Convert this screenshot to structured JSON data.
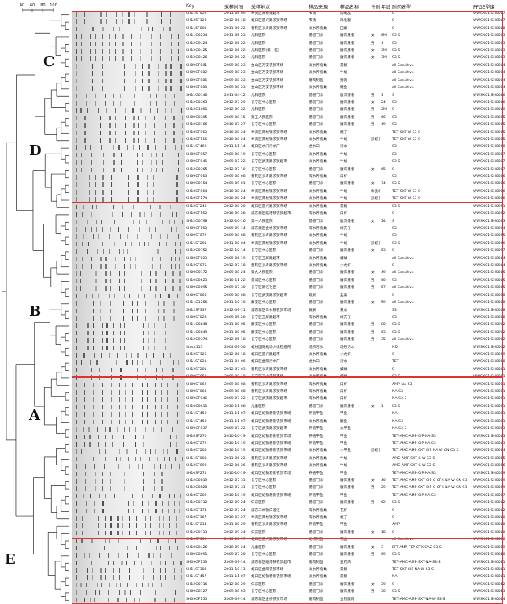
{
  "header": {
    "key": "Key",
    "date": "采样时间",
    "site": "采样地点",
    "source": "样品来源",
    "sample": "样品名称",
    "sex": "性别",
    "age": "年龄",
    "resistance": "耐药表型",
    "pfge": "PFGE型谱"
  },
  "scale_ticks": [
    "40",
    "60",
    "80",
    "100"
  ],
  "clusters": [
    "C",
    "D",
    "B",
    "A",
    "E"
  ],
  "rows": [
    [
      "SH115F029",
      "2011-05-09",
      "奉贤区南桥镇超市",
      "市场",
      "肉制品",
      "",
      "",
      "S",
      "WWSX01.SH0017"
    ],
    [
      "SH125F128",
      "2012-06-18",
      "虹口区嘉兴路农贸市场",
      "市场",
      "鸡毛翻",
      "",
      "",
      "S",
      "WWSX01.SH0017"
    ],
    [
      "SH115F003",
      "2011-06-22",
      "普陀区长寿路农贸市场",
      "淡水养殖类",
      "田螺",
      "",
      "",
      "S",
      "WWSX01.SH0018"
    ],
    [
      "SH11G0234",
      "2011-05-23",
      "儿科医院",
      "肠道门诊",
      "腹泻患者",
      "女",
      "6M",
      "S3-S",
      "WWSX01.SH0003"
    ],
    [
      "SH12G0424",
      "2012-06-22",
      "儿科医院",
      "肠道门诊",
      "腹泻患者",
      "男",
      "4",
      "S3",
      "WWSX01.SH0003"
    ],
    [
      "SH12G0425",
      "2012-06-22",
      "儿科医院(第一医)",
      "肠道门诊",
      "腹泻患者",
      "女",
      "3M",
      "S3-S",
      "WWSX01.SH0003"
    ],
    [
      "SH12G0426",
      "2012-06-22",
      "儿科医院",
      "肠道门诊",
      "腹泻患者",
      "女",
      "3M",
      "S3-S",
      "WWSX01.SH0003"
    ],
    [
      "SH09GF081",
      "2009-08-23",
      "金山区万安农贸市场",
      "淡水养殖类",
      "黄鳝",
      "",
      "",
      "all Sensitive",
      "WWSX01.SH0004"
    ],
    [
      "SH09GF082",
      "2009-08-23",
      "金山区万安农贸市场",
      "淡水养殖类",
      "牛蛙",
      "",
      "",
      "all Sensitive",
      "WWSX01.SH0004"
    ],
    [
      "SH09GF086",
      "2009-08-23",
      "金山区万安农贸市场",
      "猪肉制品",
      "猪肉",
      "",
      "",
      "all Sensitive",
      "WWSX01.SH0004"
    ],
    [
      "SH09GF088",
      "2009-08-23",
      "金山区万安农贸市场",
      "淡水养殖类",
      "鳝鱼",
      "",
      "",
      "all Sensitive",
      "WWSX01.SH0004"
    ],
    [
      "SH11G0146",
      "2011-04-12",
      "儿科医院",
      "肠道门诊",
      "腹泻患者",
      "男",
      "1",
      "S",
      "WWSX01.SH0016"
    ],
    [
      "SH12G0363",
      "2012-07-29",
      "长宁区中心医院",
      "肠道门诊",
      "腹泻患者",
      "女",
      "24",
      "S3",
      "WWSX01.SH0016"
    ],
    [
      "SH12G1001",
      "2012-09-22",
      "儿科医院",
      "肠道门诊",
      "腹泻患者",
      "男",
      "2M",
      "S",
      "WWSX01.SH0019"
    ],
    [
      "SH09G0305",
      "2009-08-15",
      "第五人民医院",
      "肠道门诊",
      "腹泻患者",
      "男",
      "66",
      "S3",
      "WWSX01.SH0005"
    ],
    [
      "SH10G0166",
      "2010-07-27",
      "长宁区中心医院",
      "肠道门诊",
      "腹泻患者",
      "男",
      "49",
      "S3",
      "WWSX01.SH0005"
    ],
    [
      "SH10GF063",
      "2010-08-24",
      "奉贤区南桥镇农贸市场",
      "淡水养殖类",
      "鳝子",
      "",
      "",
      "TET-SXT-W-S3-S",
      "WWSX01.SH0005"
    ],
    [
      "SH10GF115",
      "2010-08-24",
      "奉贤区南桥镇农贸市场",
      "淡水养殖类",
      "牛蛙",
      "彭妮子",
      "",
      "TET-SXT-W-S3-S",
      "WWSX01.SH0005"
    ],
    [
      "SH11SF462",
      "2011-11-14",
      "虹口区水门污水厂",
      "进水口",
      "污水",
      "",
      "",
      "S3",
      "WWSX01.SH0020"
    ],
    [
      "SH09GF057",
      "2009-08-19",
      "长宁区中心医院",
      "淡水养殖类",
      "牛蛙",
      "",
      "",
      "S3",
      "WWSX01.SH0007"
    ],
    [
      "SH09GF045",
      "2009-07-22",
      "长宁区武夷路农贸超市",
      "淡水养殖类",
      "牛蛙",
      "",
      "",
      "S3-S",
      "WWSX01.SH0007"
    ],
    [
      "SH12G0365",
      "2012-07-10",
      "长宁区中心医院",
      "肠道门诊",
      "腹泻患者",
      "女",
      "65",
      "S",
      "WWSX01.SH0007"
    ],
    [
      "SH09GF068",
      "2009-08-08",
      "普陀区长寿路农贸市场",
      "海水养殖类",
      "白虾",
      "",
      "",
      "S3",
      "WWSX01.SH0006"
    ],
    [
      "SH09G0154",
      "2009-09-01",
      "长宁区中心医院",
      "肠道门诊",
      "腹泻患者",
      "女",
      "74",
      "S3-S",
      "WWSX01.SH0006"
    ],
    [
      "SH10GF064",
      "2010-08-24",
      "奉贤区南桥镇农贸市场",
      "淡水养殖类",
      "牛蛙",
      "侏蚤水",
      "",
      "TET-SXT-W-S3-S",
      "WWSX01.SH0006"
    ],
    [
      "SH10GF174",
      "2010-08-24",
      "奉贤区南桥镇农贸市场",
      "淡水养殖类",
      "牛蛙",
      "彭妮子",
      "",
      "TET-SXT-W-S3-S",
      "WWSX01.SH0006"
    ],
    [
      "SH12SF248",
      "2012-08-20",
      "虹口区嘉兴路农贸市场",
      "淡水养殖类",
      "黄鳝",
      "",
      "",
      "S3-S",
      "WWSX01.SH0021"
    ],
    [
      "SH10GF152",
      "2010-09-28",
      "浦东新区临港镇农贸超市",
      "海水养殖类",
      "白虾",
      "",
      "",
      "S",
      "WWSX01.SH0022"
    ],
    [
      "SH12G0798",
      "2012-10-16",
      "第一人民医院",
      "肠道门诊",
      "腹泻患者",
      "女",
      "14",
      "S",
      "WWSX01.SH0023"
    ],
    [
      "SH09GF160",
      "2009-09-14",
      "浦东新区金桥农贸市场",
      "海水养殖类",
      "梅花子",
      "",
      "",
      "S3",
      "WWSX01.SH0024"
    ],
    [
      "SH09SF072",
      "2009-08-08",
      "普陀区长寿路农贸市场",
      "淡水养殖类",
      "牛蛙",
      "",
      "",
      "S3",
      "WWSX01.SH0025"
    ],
    [
      "SH11SF201",
      "2011-08-04",
      "奉贤区南桥镇农贸市场",
      "淡水养殖类",
      "牛蛙",
      "彭妮子",
      "",
      "S3-S",
      "WWSX01.SH0026"
    ],
    [
      "SH12G0752",
      "2012-10-14",
      "长宁区中心医院",
      "肠道门诊",
      "腹泻患者",
      "女",
      "53",
      "S",
      "WWSX01.SH0027"
    ],
    [
      "SH09GF023",
      "2009-06-19",
      "长宁区玉屏路超市",
      "淡水养殖类",
      "螺蛳",
      "",
      "",
      "all Sensitive",
      "WWSX01.SH0014"
    ],
    [
      "SH12SF075",
      "2012-07-18",
      "普陀区长寿路农贸市场",
      "淡水养殖类",
      "小龙虾",
      "",
      "",
      "S",
      "WWSX01.SH0014"
    ],
    [
      "SH09G0172",
      "2009-08-24",
      "第九人民医院",
      "肠道门诊",
      "腹泻患者",
      "女",
      "49",
      "all Sensitive",
      "WWSX01.SH0015"
    ],
    [
      "SH10G0623",
      "2010-11-22",
      "黄浦区中心医院",
      "肠道门诊",
      "腹泻患者",
      "男",
      "60",
      "S3",
      "WWSX01.SH0015"
    ],
    [
      "SH09G0095",
      "2009-07-30",
      "长宁区新泾社区",
      "肠道门诊",
      "腹泻患者",
      "男",
      "57",
      "all Sensitive",
      "WWSX01.SH0015"
    ],
    [
      "SH09SF063",
      "2009-08-08",
      "长宁区武夷路农贸超市",
      "蔬果",
      "韭菜",
      "",
      "",
      "S",
      "WWSX01.SH0028"
    ],
    [
      "SH11G1256",
      "2011-10-10",
      "静安区中心医院",
      "肠道门诊",
      "腹泻患者",
      "女",
      "59",
      "all Sensitive",
      "WWSX01.SH0008"
    ],
    [
      "SH12SF337",
      "2012-09-11",
      "浦东新区三林镇农贸市场",
      "蔬果",
      "黄瓜",
      "",
      "",
      "S3",
      "WWSX01.SH0008"
    ],
    [
      "SH09SF028",
      "2009-05-20",
      "长宁区玉屏路超市",
      "海水养殖类",
      "梅花子",
      "",
      "",
      "S3",
      "WWSX01.SH0008"
    ],
    [
      "SH11G0848",
      "2011-08-05",
      "静安区中心医院",
      "肠道门诊",
      "腹泻患者",
      "男",
      "80",
      "S3-S",
      "WWSX01.SH0002"
    ],
    [
      "SH11G0849",
      "2011-08-05",
      "静安区中心医院",
      "肠道门诊",
      "腹泻患者",
      "男",
      "63",
      "S3-S",
      "WWSX01.SH0002"
    ],
    [
      "SH12G0374",
      "2012-05-18",
      "长宁区中心医院",
      "肠道门诊",
      "腹泻患者",
      "男",
      "35",
      "all Sensitive",
      "WWSX01.SH0002"
    ],
    [
      "Stock113",
      "2004-09-30",
      "虹桥国际机场入境检疫所",
      "场所污水",
      "场所污水",
      "",
      "",
      "ND",
      "WWSX01.SH0002"
    ],
    [
      "SH12SF126",
      "2012-06-18",
      "虹口区嘉兴路超市",
      "淡水养殖类",
      "小龙虾",
      "",
      "",
      "S",
      "WWSX01.SH0029"
    ],
    [
      "SH11SF021",
      "2011-04-06",
      "虹口区曲阳污水厂",
      "进水口",
      "污水",
      "",
      "",
      "TET",
      "WWSX01.SH0030"
    ],
    [
      "SH12SF201",
      "2012-07-03",
      "普陀区长寿路农贸市场",
      "淡水养殖类",
      "螺蛳",
      "",
      "",
      "S",
      "WWSX01.SH0031"
    ],
    [
      "SH09SF053",
      "2009-08-19",
      "长宁区天山农贸市场",
      "淡水养殖类",
      "螺蛳",
      "",
      "",
      "S3-S",
      "WWSX01.SH0031"
    ],
    [
      "SH09SF062",
      "2009-08-08",
      "普陀区长寿路农贸市场",
      "海水养殖类",
      "白虾",
      "",
      "",
      "AMP-NA-S3",
      "WWSX01.SH0001"
    ],
    [
      "SH09SF063",
      "2009-08-08",
      "普陀区长寿路农贸市场",
      "海水养殖类",
      "白虾",
      "",
      "",
      "NA-S3",
      "WWSX01.SH0001"
    ],
    [
      "SH09GF046",
      "2009-07-22",
      "长宁区武夷路农贸超市",
      "海水养殖类",
      "白虾",
      "",
      "",
      "NA-S3-S",
      "WWSX01.SH0001"
    ],
    [
      "SH10G0611",
      "2010-11-08",
      "儿童医院",
      "肠道门诊",
      "腹泻患者",
      "女",
      "1",
      "S3-S",
      "WWSX01.SH0001"
    ],
    [
      "SH11SF459",
      "2011-11-07",
      "虹口区虹镇老街农贸市场",
      "养殖甲鱼",
      "甲鱼",
      "",
      "",
      "NA",
      "WWSX01.SH0001"
    ],
    [
      "SH11SF458",
      "2011-11-07",
      "虹口区虹镇老街农贸市场",
      "淡水养殖类",
      "鳜鱼",
      "",
      "",
      "NA-S3",
      "WWSX01.SH0001"
    ],
    [
      "SH09GF037",
      "2009-07-22",
      "长宁区武夷路农贸超市",
      "养殖甲鱼",
      "大甲鱼",
      "",
      "",
      "NA-S3-S",
      "WWSX01.SH0033"
    ],
    [
      "SH10SF270",
      "2010-10-19",
      "虹口区虹镇老街农贸市场",
      "养殖甲鱼",
      "甲鱼",
      "",
      "",
      "TET-AMC-AMP-CIP-NA-S3",
      "WWSX01.SH0013"
    ],
    [
      "SH10SF272",
      "2010-10-19",
      "虹口区虹镇老街农贸市场",
      "养殖甲鱼",
      "甲鱼",
      "",
      "",
      "TET-AMC-AMP-CIP-NA-S3",
      "WWSX01.SH0013"
    ],
    [
      "SH10SF208",
      "2010-10-19",
      "虹口区虹镇老街农贸市场",
      "淡水养殖类",
      "小甲鱼",
      "彭妮子",
      "",
      "TET-AMC-AMP-SXT-CIP-NA-W-CN-S3-S",
      "WWSX01.SH0034"
    ],
    [
      "SH11SF088",
      "2011-06-22",
      "普陀区长寿路农贸市场",
      "淡水养殖类",
      "牛蛙",
      "",
      "",
      "AMC-AMP-SXT-C-W-S3-S",
      "WWSX01.SH0035"
    ],
    [
      "SH12SF098",
      "2012-06-26",
      "普陀区长寿路农贸市场",
      "淡水养殖类",
      "牛蛙",
      "",
      "",
      "AMC-AMP-SXT-C-W-S3-S",
      "WWSX01.SH0036"
    ],
    [
      "SH10SF271",
      "2010-10-19",
      "虹口区虹镇老街农贸市场",
      "养殖甲鱼",
      "甲鱼",
      "",
      "",
      "TET-AMC-AMP-CIP-NA-S3",
      "WWSX01.SH0009"
    ],
    [
      "SH12G0819",
      "2012-07-31",
      "长宁区中心医院",
      "肠道门诊",
      "腹泻患者",
      "女",
      "40",
      "TET-AMC-AMP-SXT-CIP-C-CFX-NA-W-CN-S3-S",
      "WWSX01.SH0009"
    ],
    [
      "SH12G0820",
      "2012-07-31",
      "长宁区中心医院",
      "肠道门诊",
      "腹泻患者",
      "男",
      "29",
      "TET-AMC-AMP-SXT-CIP-C-CFX-NA-W-CN-S3-S",
      "WWSX01.SH0009"
    ],
    [
      "SH10SF209",
      "2010-10-19",
      "虹口区虹镇老街农贸市场",
      "养殖甲鱼",
      "甲鱼",
      "",
      "",
      "TET-AMC-AMP-CIP-NA-S3",
      "WWSX01.SH0037"
    ],
    [
      "SH12G0712",
      "2012-09-24",
      "仁济医院",
      "肠道门诊",
      "腹泻患者",
      "男",
      "62",
      "S3-S",
      "WWSX01.SH0012"
    ],
    [
      "SH12SF174",
      "2012-07-24",
      "浦东三林镇白莲泾",
      "海水养殖类",
      "花虾",
      "",
      "",
      "S",
      "WWSX01.SH0012"
    ],
    [
      "SH10SF167",
      "2010-07-27",
      "奉贤区南桥镇农贸市场",
      "海水养殖类",
      "蛏子",
      "",
      "",
      "S",
      "WWSX01.SH0010"
    ],
    [
      "SH11SF214",
      "2011-08-29",
      "普陀区长寿路农贸市场",
      "养殖甲鱼",
      "甲鱼",
      "",
      "",
      "AMP",
      "WWSX01.SH0010"
    ],
    [
      "SH12G0713",
      "2012-09-24",
      "仁济医院",
      "肠道门诊",
      "腹泻患者",
      "女",
      "18",
      "S",
      "WWSX01.SH0010"
    ],
    [
      "SH10SF139",
      "2010-08-17",
      "虹口区嘉兴路农贸市场",
      "动物制品",
      "鸭血",
      "",
      "",
      "all Sensitive",
      "WWSX01.SH0038"
    ],
    [
      "SH10G0426",
      "2010-09-24",
      "儿童医院",
      "肠道门诊",
      "腹泻患者",
      "女",
      "3",
      "EFT-AMP-FEP-CTX-CAZ-S3-S",
      "WWSX01.SH0039"
    ],
    [
      "SH09G0091",
      "2009-07-20",
      "长宁区中心医院",
      "肠道门诊",
      "腹泻患者",
      "男",
      "69",
      "S3-S",
      "WWSX01.SH0040"
    ],
    [
      "SH09GF153",
      "2009-09-14",
      "浦东新区临港镇农贸超市",
      "猪肉制品",
      "五花肉",
      "",
      "",
      "TET-AMC-AMP-SXT-NA-S3-S",
      "WWSX01.SH0041"
    ],
    [
      "SH11SF388",
      "2011-10-11",
      "虹口区曲阳农贸市场",
      "淡水养殖类",
      "黄鳝",
      "",
      "",
      "TET-SXT-CIP-NA-W-S3-S",
      "WWSX01.SH0011"
    ],
    [
      "SH11SF457",
      "2011-11-07",
      "虹口区虹镇老街农贸市场",
      "淡水养殖类",
      "黄鳝",
      "",
      "",
      "NA",
      "WWSX01.SH0011"
    ],
    [
      "SH12G0716",
      "2012-08-29",
      "仁济医院",
      "肠道门诊",
      "腹泻患者",
      "女",
      "39",
      "S",
      "WWSX01.SH0042"
    ],
    [
      "SH09G0127",
      "2009-08-03",
      "长宁区中心医院",
      "肠道门诊",
      "腹泻患者",
      "男",
      "30",
      "S3-S",
      "WWSX01.SH0043"
    ],
    [
      "SH09GF155",
      "2009-09-14",
      "浦东新区金桥农贸市场",
      "猪肉制品",
      "金钱腱肉",
      "",
      "",
      "TET-AMC-AMP-SXT-NA-W-S3-S",
      "WWSX01.SH0044"
    ]
  ]
}
